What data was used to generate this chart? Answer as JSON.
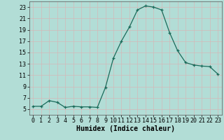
{
  "x": [
    0,
    1,
    2,
    3,
    4,
    5,
    6,
    7,
    8,
    9,
    10,
    11,
    12,
    13,
    14,
    15,
    16,
    17,
    18,
    19,
    20,
    21,
    22,
    23
  ],
  "y": [
    5.5,
    5.5,
    6.5,
    6.2,
    5.3,
    5.5,
    5.4,
    5.4,
    5.3,
    8.8,
    14.0,
    17.0,
    19.5,
    22.5,
    23.2,
    23.0,
    22.5,
    18.5,
    15.3,
    13.2,
    12.8,
    12.6,
    12.5,
    11.2
  ],
  "xlabel": "Humidex (Indice chaleur)",
  "ylim": [
    4,
    24
  ],
  "xlim": [
    -0.5,
    23.5
  ],
  "yticks": [
    5,
    7,
    9,
    11,
    13,
    15,
    17,
    19,
    21,
    23
  ],
  "xticks": [
    0,
    1,
    2,
    3,
    4,
    5,
    6,
    7,
    8,
    9,
    10,
    11,
    12,
    13,
    14,
    15,
    16,
    17,
    18,
    19,
    20,
    21,
    22,
    23
  ],
  "line_color": "#1a6b5a",
  "marker": "+",
  "bg_color": "#b2ddd6",
  "grid_color": "#d4b8b8",
  "label_fontsize": 7.0,
  "tick_fontsize": 6.0
}
